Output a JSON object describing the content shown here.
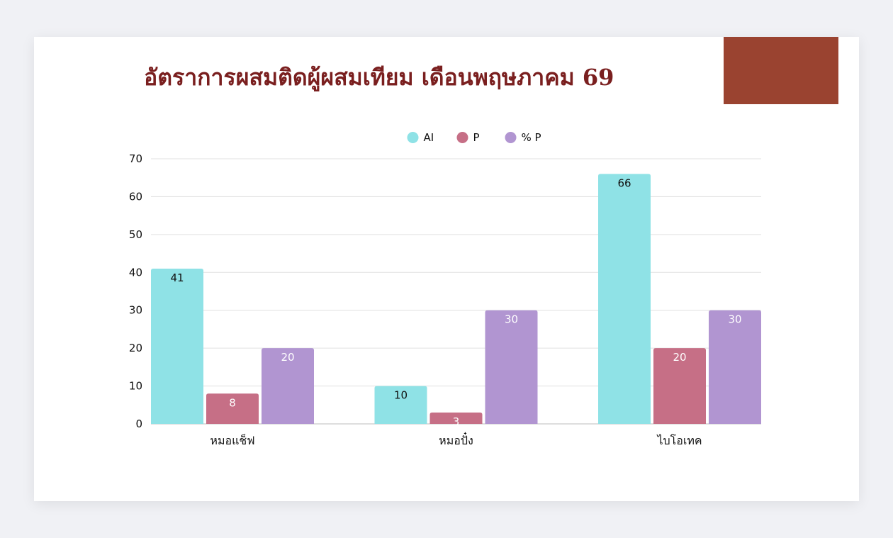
{
  "slide": {
    "title": "อัตราการผสมติดผู้ผสมเทียม เดือนพฤษภาคม 69",
    "title_color": "#7a1f1f",
    "accent_color": "#9a4330",
    "background": "#ffffff"
  },
  "chart_data": {
    "type": "bar",
    "categories": [
      "หมอแช็ฟ",
      "หมอปั๋ง",
      "ไบโอเทค"
    ],
    "series": [
      {
        "name": "AI",
        "color": "#8fe2e6",
        "label_color": "#111111",
        "values": [
          41,
          10,
          66
        ]
      },
      {
        "name": "P",
        "color": "#c66f86",
        "label_color": "#ffffff",
        "values": [
          8,
          3,
          20
        ]
      },
      {
        "name": "% P",
        "color": "#b195d1",
        "label_color": "#ffffff",
        "values": [
          20,
          30,
          30
        ]
      }
    ],
    "value_labels": [
      [
        "41",
        "10",
        "66"
      ],
      [
        "8",
        "3",
        "20"
      ],
      [
        "20",
        "30",
        "30"
      ]
    ],
    "yticks": [
      0,
      10,
      20,
      30,
      40,
      50,
      60,
      70
    ],
    "ylim": [
      0,
      70
    ],
    "grid": true,
    "legend_position": "top-center"
  }
}
